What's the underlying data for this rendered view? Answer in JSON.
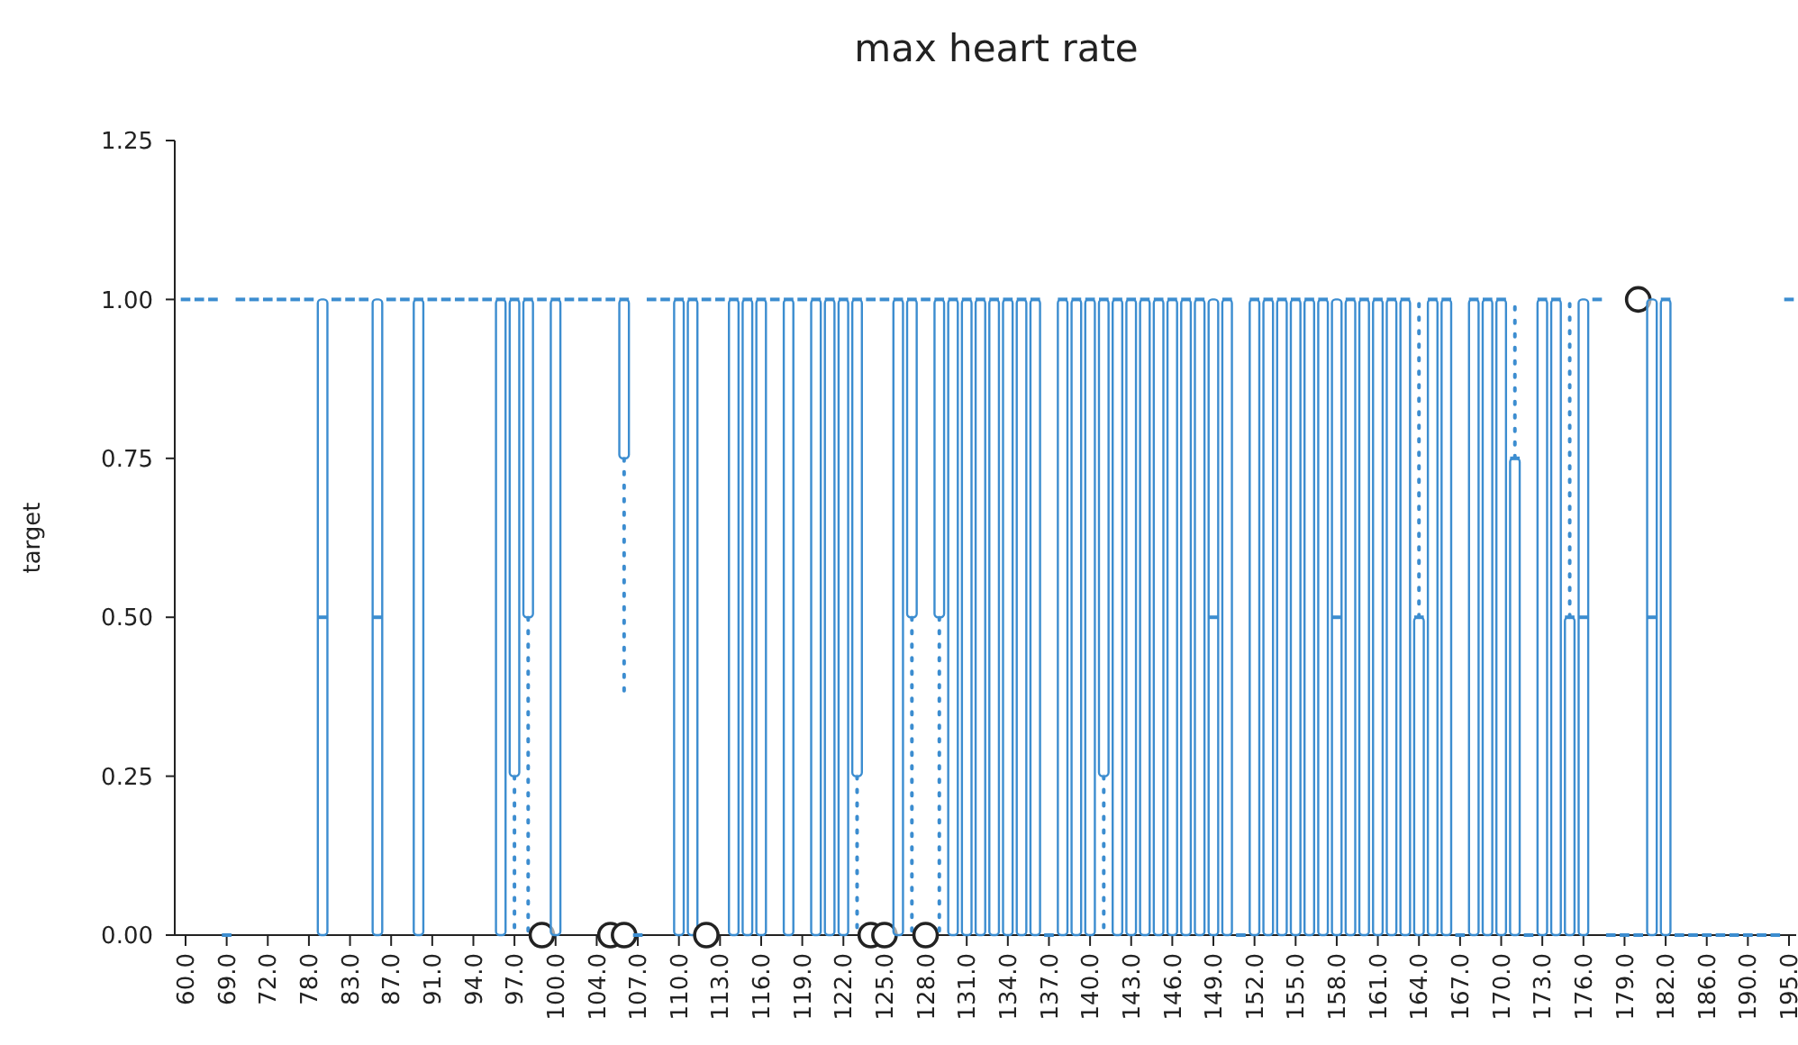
{
  "chart_data": {
    "type": "box",
    "title": "max heart rate",
    "ylabel": "target",
    "color": "#3c8dd0",
    "line_style": "dotted",
    "ylim": [
      0,
      1.25
    ],
    "yticks": [
      {
        "value": 0,
        "label": "0.00"
      },
      {
        "value": 0.25,
        "label": "0.25"
      },
      {
        "value": 0.5,
        "label": "0.50"
      },
      {
        "value": 0.75,
        "label": "0.75"
      },
      {
        "value": 1,
        "label": "1.00"
      },
      {
        "value": 1.25,
        "label": "1.25"
      }
    ],
    "categories": [
      "60.0",
      null,
      null,
      "69.0",
      null,
      null,
      "72.0",
      null,
      null,
      "78.0",
      null,
      null,
      "83.0",
      null,
      null,
      "87.0",
      null,
      null,
      "91.0",
      null,
      null,
      "94.0",
      null,
      null,
      "97.0",
      null,
      null,
      "100.0",
      null,
      null,
      "104.0",
      null,
      null,
      "107.0",
      null,
      null,
      "110.0",
      null,
      null,
      "113.0",
      null,
      null,
      "116.0",
      null,
      null,
      "119.0",
      null,
      null,
      "122.0",
      null,
      null,
      "125.0",
      null,
      null,
      "128.0",
      null,
      null,
      "131.0",
      null,
      null,
      "134.0",
      null,
      null,
      "137.0",
      null,
      null,
      "140.0",
      null,
      null,
      "143.0",
      null,
      null,
      "146.0",
      null,
      null,
      "149.0",
      null,
      null,
      "152.0",
      null,
      null,
      "155.0",
      null,
      null,
      "158.0",
      null,
      null,
      "161.0",
      null,
      null,
      "164.0",
      null,
      null,
      "167.0",
      null,
      null,
      "170.0",
      null,
      null,
      "173.0",
      null,
      null,
      "176.0",
      null,
      null,
      "179.0",
      null,
      null,
      "182.0",
      null,
      null,
      "186.0",
      null,
      null,
      "190.0",
      null,
      null,
      "195.0"
    ],
    "boxes": [
      {
        "low": 1,
        "q1": 1,
        "median": 1,
        "q3": 1,
        "high": 1
      },
      {
        "low": 1,
        "q1": 1,
        "median": 1,
        "q3": 1,
        "high": 1
      },
      {
        "low": 1,
        "q1": 1,
        "median": 1,
        "q3": 1,
        "high": 1
      },
      {
        "low": 0,
        "q1": 0,
        "median": 0,
        "q3": 0,
        "high": 0
      },
      {
        "low": 1,
        "q1": 1,
        "median": 1,
        "q3": 1,
        "high": 1
      },
      {
        "low": 1,
        "q1": 1,
        "median": 1,
        "q3": 1,
        "high": 1
      },
      {
        "low": 1,
        "q1": 1,
        "median": 1,
        "q3": 1,
        "high": 1
      },
      {
        "low": 1,
        "q1": 1,
        "median": 1,
        "q3": 1,
        "high": 1
      },
      {
        "low": 1,
        "q1": 1,
        "median": 1,
        "q3": 1,
        "high": 1
      },
      {
        "low": 1,
        "q1": 1,
        "median": 1,
        "q3": 1,
        "high": 1
      },
      {
        "low": 0,
        "q1": 0,
        "median": 0.5,
        "q3": 1,
        "high": 1
      },
      {
        "low": 1,
        "q1": 1,
        "median": 1,
        "q3": 1,
        "high": 1
      },
      {
        "low": 1,
        "q1": 1,
        "median": 1,
        "q3": 1,
        "high": 1
      },
      {
        "low": 1,
        "q1": 1,
        "median": 1,
        "q3": 1,
        "high": 1
      },
      {
        "low": 0,
        "q1": 0,
        "median": 0.5,
        "q3": 1,
        "high": 1
      },
      {
        "low": 1,
        "q1": 1,
        "median": 1,
        "q3": 1,
        "high": 1
      },
      {
        "low": 1,
        "q1": 1,
        "median": 1,
        "q3": 1,
        "high": 1
      },
      {
        "low": 0,
        "q1": 0,
        "median": 1,
        "q3": 1,
        "high": 1
      },
      {
        "low": 1,
        "q1": 1,
        "median": 1,
        "q3": 1,
        "high": 1
      },
      {
        "low": 1,
        "q1": 1,
        "median": 1,
        "q3": 1,
        "high": 1
      },
      {
        "low": 1,
        "q1": 1,
        "median": 1,
        "q3": 1,
        "high": 1
      },
      {
        "low": 1,
        "q1": 1,
        "median": 1,
        "q3": 1,
        "high": 1
      },
      {
        "low": 1,
        "q1": 1,
        "median": 1,
        "q3": 1,
        "high": 1
      },
      {
        "low": 0,
        "q1": 0,
        "median": 1,
        "q3": 1,
        "high": 1
      },
      {
        "low": 0,
        "q1": 0.25,
        "median": 1,
        "q3": 1,
        "high": 1
      },
      {
        "low": 0,
        "q1": 0.5,
        "median": 1,
        "q3": 1,
        "high": 1
      },
      {
        "low": 1,
        "q1": 1,
        "median": 1,
        "q3": 1,
        "high": 1,
        "outliers": [
          0
        ]
      },
      {
        "low": 0,
        "q1": 0,
        "median": 1,
        "q3": 1,
        "high": 1
      },
      {
        "low": 1,
        "q1": 1,
        "median": 1,
        "q3": 1,
        "high": 1
      },
      {
        "low": 1,
        "q1": 1,
        "median": 1,
        "q3": 1,
        "high": 1
      },
      {
        "low": 1,
        "q1": 1,
        "median": 1,
        "q3": 1,
        "high": 1
      },
      {
        "low": 1,
        "q1": 1,
        "median": 1,
        "q3": 1,
        "high": 1,
        "outliers": [
          0
        ]
      },
      {
        "low": 0.375,
        "q1": 0.75,
        "median": 1,
        "q3": 1,
        "high": 1,
        "outliers": [
          0
        ]
      },
      {
        "low": 0,
        "q1": 0,
        "median": 0,
        "q3": 0,
        "high": 0
      },
      {
        "low": 1,
        "q1": 1,
        "median": 1,
        "q3": 1,
        "high": 1
      },
      {
        "low": 1,
        "q1": 1,
        "median": 1,
        "q3": 1,
        "high": 1
      },
      {
        "low": 0,
        "q1": 0,
        "median": 1,
        "q3": 1,
        "high": 1
      },
      {
        "low": 0,
        "q1": 0,
        "median": 1,
        "q3": 1,
        "high": 1
      },
      {
        "low": 1,
        "q1": 1,
        "median": 1,
        "q3": 1,
        "high": 1,
        "outliers": [
          0
        ]
      },
      {
        "low": 1,
        "q1": 1,
        "median": 1,
        "q3": 1,
        "high": 1
      },
      {
        "low": 0,
        "q1": 0,
        "median": 1,
        "q3": 1,
        "high": 1
      },
      {
        "low": 0,
        "q1": 0,
        "median": 1,
        "q3": 1,
        "high": 1
      },
      {
        "low": 0,
        "q1": 0,
        "median": 1,
        "q3": 1,
        "high": 1
      },
      {
        "low": 1,
        "q1": 1,
        "median": 1,
        "q3": 1,
        "high": 1
      },
      {
        "low": 0,
        "q1": 0,
        "median": 1,
        "q3": 1,
        "high": 1
      },
      {
        "low": 1,
        "q1": 1,
        "median": 1,
        "q3": 1,
        "high": 1
      },
      {
        "low": 0,
        "q1": 0,
        "median": 1,
        "q3": 1,
        "high": 1
      },
      {
        "low": 0,
        "q1": 0,
        "median": 1,
        "q3": 1,
        "high": 1
      },
      {
        "low": 0,
        "q1": 0,
        "median": 1,
        "q3": 1,
        "high": 1
      },
      {
        "low": 0,
        "q1": 0.25,
        "median": 1,
        "q3": 1,
        "high": 1
      },
      {
        "low": 1,
        "q1": 1,
        "median": 1,
        "q3": 1,
        "high": 1,
        "outliers": [
          0
        ]
      },
      {
        "low": 1,
        "q1": 1,
        "median": 1,
        "q3": 1,
        "high": 1,
        "outliers": [
          0
        ]
      },
      {
        "low": 0,
        "q1": 0,
        "median": 1,
        "q3": 1,
        "high": 1
      },
      {
        "low": 0,
        "q1": 0.5,
        "median": 1,
        "q3": 1,
        "high": 1
      },
      {
        "low": 1,
        "q1": 1,
        "median": 1,
        "q3": 1,
        "high": 1,
        "outliers": [
          0
        ]
      },
      {
        "low": 0,
        "q1": 0.5,
        "median": 1,
        "q3": 1,
        "high": 1
      },
      {
        "low": 0,
        "q1": 0,
        "median": 1,
        "q3": 1,
        "high": 1
      },
      {
        "low": 0,
        "q1": 0,
        "median": 1,
        "q3": 1,
        "high": 1
      },
      {
        "low": 0,
        "q1": 0,
        "median": 1,
        "q3": 1,
        "high": 1
      },
      {
        "low": 0,
        "q1": 0,
        "median": 1,
        "q3": 1,
        "high": 1
      },
      {
        "low": 0,
        "q1": 0,
        "median": 1,
        "q3": 1,
        "high": 1
      },
      {
        "low": 0,
        "q1": 0,
        "median": 1,
        "q3": 1,
        "high": 1
      },
      {
        "low": 0,
        "q1": 0,
        "median": 1,
        "q3": 1,
        "high": 1
      },
      {
        "low": 0,
        "q1": 0,
        "median": 0,
        "q3": 0,
        "high": 0
      },
      {
        "low": 0,
        "q1": 0,
        "median": 1,
        "q3": 1,
        "high": 1
      },
      {
        "low": 0,
        "q1": 0,
        "median": 1,
        "q3": 1,
        "high": 1
      },
      {
        "low": 0,
        "q1": 0,
        "median": 1,
        "q3": 1,
        "high": 1
      },
      {
        "low": 0,
        "q1": 0.25,
        "median": 1,
        "q3": 1,
        "high": 1
      },
      {
        "low": 0,
        "q1": 0,
        "median": 1,
        "q3": 1,
        "high": 1
      },
      {
        "low": 0,
        "q1": 0,
        "median": 1,
        "q3": 1,
        "high": 1
      },
      {
        "low": 0,
        "q1": 0,
        "median": 1,
        "q3": 1,
        "high": 1
      },
      {
        "low": 0,
        "q1": 0,
        "median": 1,
        "q3": 1,
        "high": 1
      },
      {
        "low": 0,
        "q1": 0,
        "median": 1,
        "q3": 1,
        "high": 1
      },
      {
        "low": 0,
        "q1": 0,
        "median": 1,
        "q3": 1,
        "high": 1
      },
      {
        "low": 0,
        "q1": 0,
        "median": 1,
        "q3": 1,
        "high": 1
      },
      {
        "low": 0,
        "q1": 0,
        "median": 0.5,
        "q3": 1,
        "high": 1
      },
      {
        "low": 0,
        "q1": 0,
        "median": 1,
        "q3": 1,
        "high": 1
      },
      {
        "low": 0,
        "q1": 0,
        "median": 0,
        "q3": 0,
        "high": 0
      },
      {
        "low": 0,
        "q1": 0,
        "median": 1,
        "q3": 1,
        "high": 1
      },
      {
        "low": 0,
        "q1": 0,
        "median": 1,
        "q3": 1,
        "high": 1
      },
      {
        "low": 0,
        "q1": 0,
        "median": 1,
        "q3": 1,
        "high": 1
      },
      {
        "low": 0,
        "q1": 0,
        "median": 1,
        "q3": 1,
        "high": 1
      },
      {
        "low": 0,
        "q1": 0,
        "median": 1,
        "q3": 1,
        "high": 1
      },
      {
        "low": 0,
        "q1": 0,
        "median": 1,
        "q3": 1,
        "high": 1
      },
      {
        "low": 0,
        "q1": 0,
        "median": 0.5,
        "q3": 1,
        "high": 1
      },
      {
        "low": 0,
        "q1": 0,
        "median": 1,
        "q3": 1,
        "high": 1
      },
      {
        "low": 0,
        "q1": 0,
        "median": 1,
        "q3": 1,
        "high": 1
      },
      {
        "low": 0,
        "q1": 0,
        "median": 1,
        "q3": 1,
        "high": 1
      },
      {
        "low": 0,
        "q1": 0,
        "median": 1,
        "q3": 1,
        "high": 1
      },
      {
        "low": 0,
        "q1": 0,
        "median": 1,
        "q3": 1,
        "high": 1
      },
      {
        "low": 0,
        "q1": 0,
        "median": 0.5,
        "q3": 0.5,
        "high": 1
      },
      {
        "low": 0,
        "q1": 0,
        "median": 1,
        "q3": 1,
        "high": 1
      },
      {
        "low": 0,
        "q1": 0,
        "median": 1,
        "q3": 1,
        "high": 1
      },
      {
        "low": 0,
        "q1": 0,
        "median": 0,
        "q3": 0,
        "high": 0
      },
      {
        "low": 0,
        "q1": 0,
        "median": 1,
        "q3": 1,
        "high": 1
      },
      {
        "low": 0,
        "q1": 0,
        "median": 1,
        "q3": 1,
        "high": 1
      },
      {
        "low": 0,
        "q1": 0,
        "median": 1,
        "q3": 1,
        "high": 1
      },
      {
        "low": 0,
        "q1": 0,
        "median": 0.75,
        "q3": 0.75,
        "high": 1
      },
      {
        "low": 0,
        "q1": 0,
        "median": 0,
        "q3": 0,
        "high": 0
      },
      {
        "low": 0,
        "q1": 0,
        "median": 1,
        "q3": 1,
        "high": 1
      },
      {
        "low": 0,
        "q1": 0,
        "median": 1,
        "q3": 1,
        "high": 1
      },
      {
        "low": 0,
        "q1": 0,
        "median": 0.5,
        "q3": 0.5,
        "high": 1
      },
      {
        "low": 0,
        "q1": 0,
        "median": 0.5,
        "q3": 1,
        "high": 1
      },
      {
        "low": 1,
        "q1": 1,
        "median": 1,
        "q3": 1,
        "high": 1
      },
      {
        "low": 0,
        "q1": 0,
        "median": 0,
        "q3": 0,
        "high": 0
      },
      {
        "low": 0,
        "q1": 0,
        "median": 0,
        "q3": 0,
        "high": 0
      },
      {
        "low": 0,
        "q1": 0,
        "median": 0,
        "q3": 0,
        "high": 0,
        "outliers": [
          1
        ]
      },
      {
        "low": 0,
        "q1": 0,
        "median": 0.5,
        "q3": 1,
        "high": 1
      },
      {
        "low": 0,
        "q1": 0,
        "median": 1,
        "q3": 1,
        "high": 1
      },
      {
        "low": 0,
        "q1": 0,
        "median": 0,
        "q3": 0,
        "high": 0
      },
      {
        "low": 0,
        "q1": 0,
        "median": 0,
        "q3": 0,
        "high": 0
      },
      {
        "low": 0,
        "q1": 0,
        "median": 0,
        "q3": 0,
        "high": 0
      },
      {
        "low": 0,
        "q1": 0,
        "median": 0,
        "q3": 0,
        "high": 0
      },
      {
        "low": 0,
        "q1": 0,
        "median": 0,
        "q3": 0,
        "high": 0
      },
      {
        "low": 0,
        "q1": 0,
        "median": 0,
        "q3": 0,
        "high": 0
      },
      {
        "low": 0,
        "q1": 0,
        "median": 0,
        "q3": 0,
        "high": 0
      },
      {
        "low": 0,
        "q1": 0,
        "median": 0,
        "q3": 0,
        "high": 0
      },
      {
        "low": 1,
        "q1": 1,
        "median": 1,
        "q3": 1,
        "high": 1
      }
    ]
  }
}
